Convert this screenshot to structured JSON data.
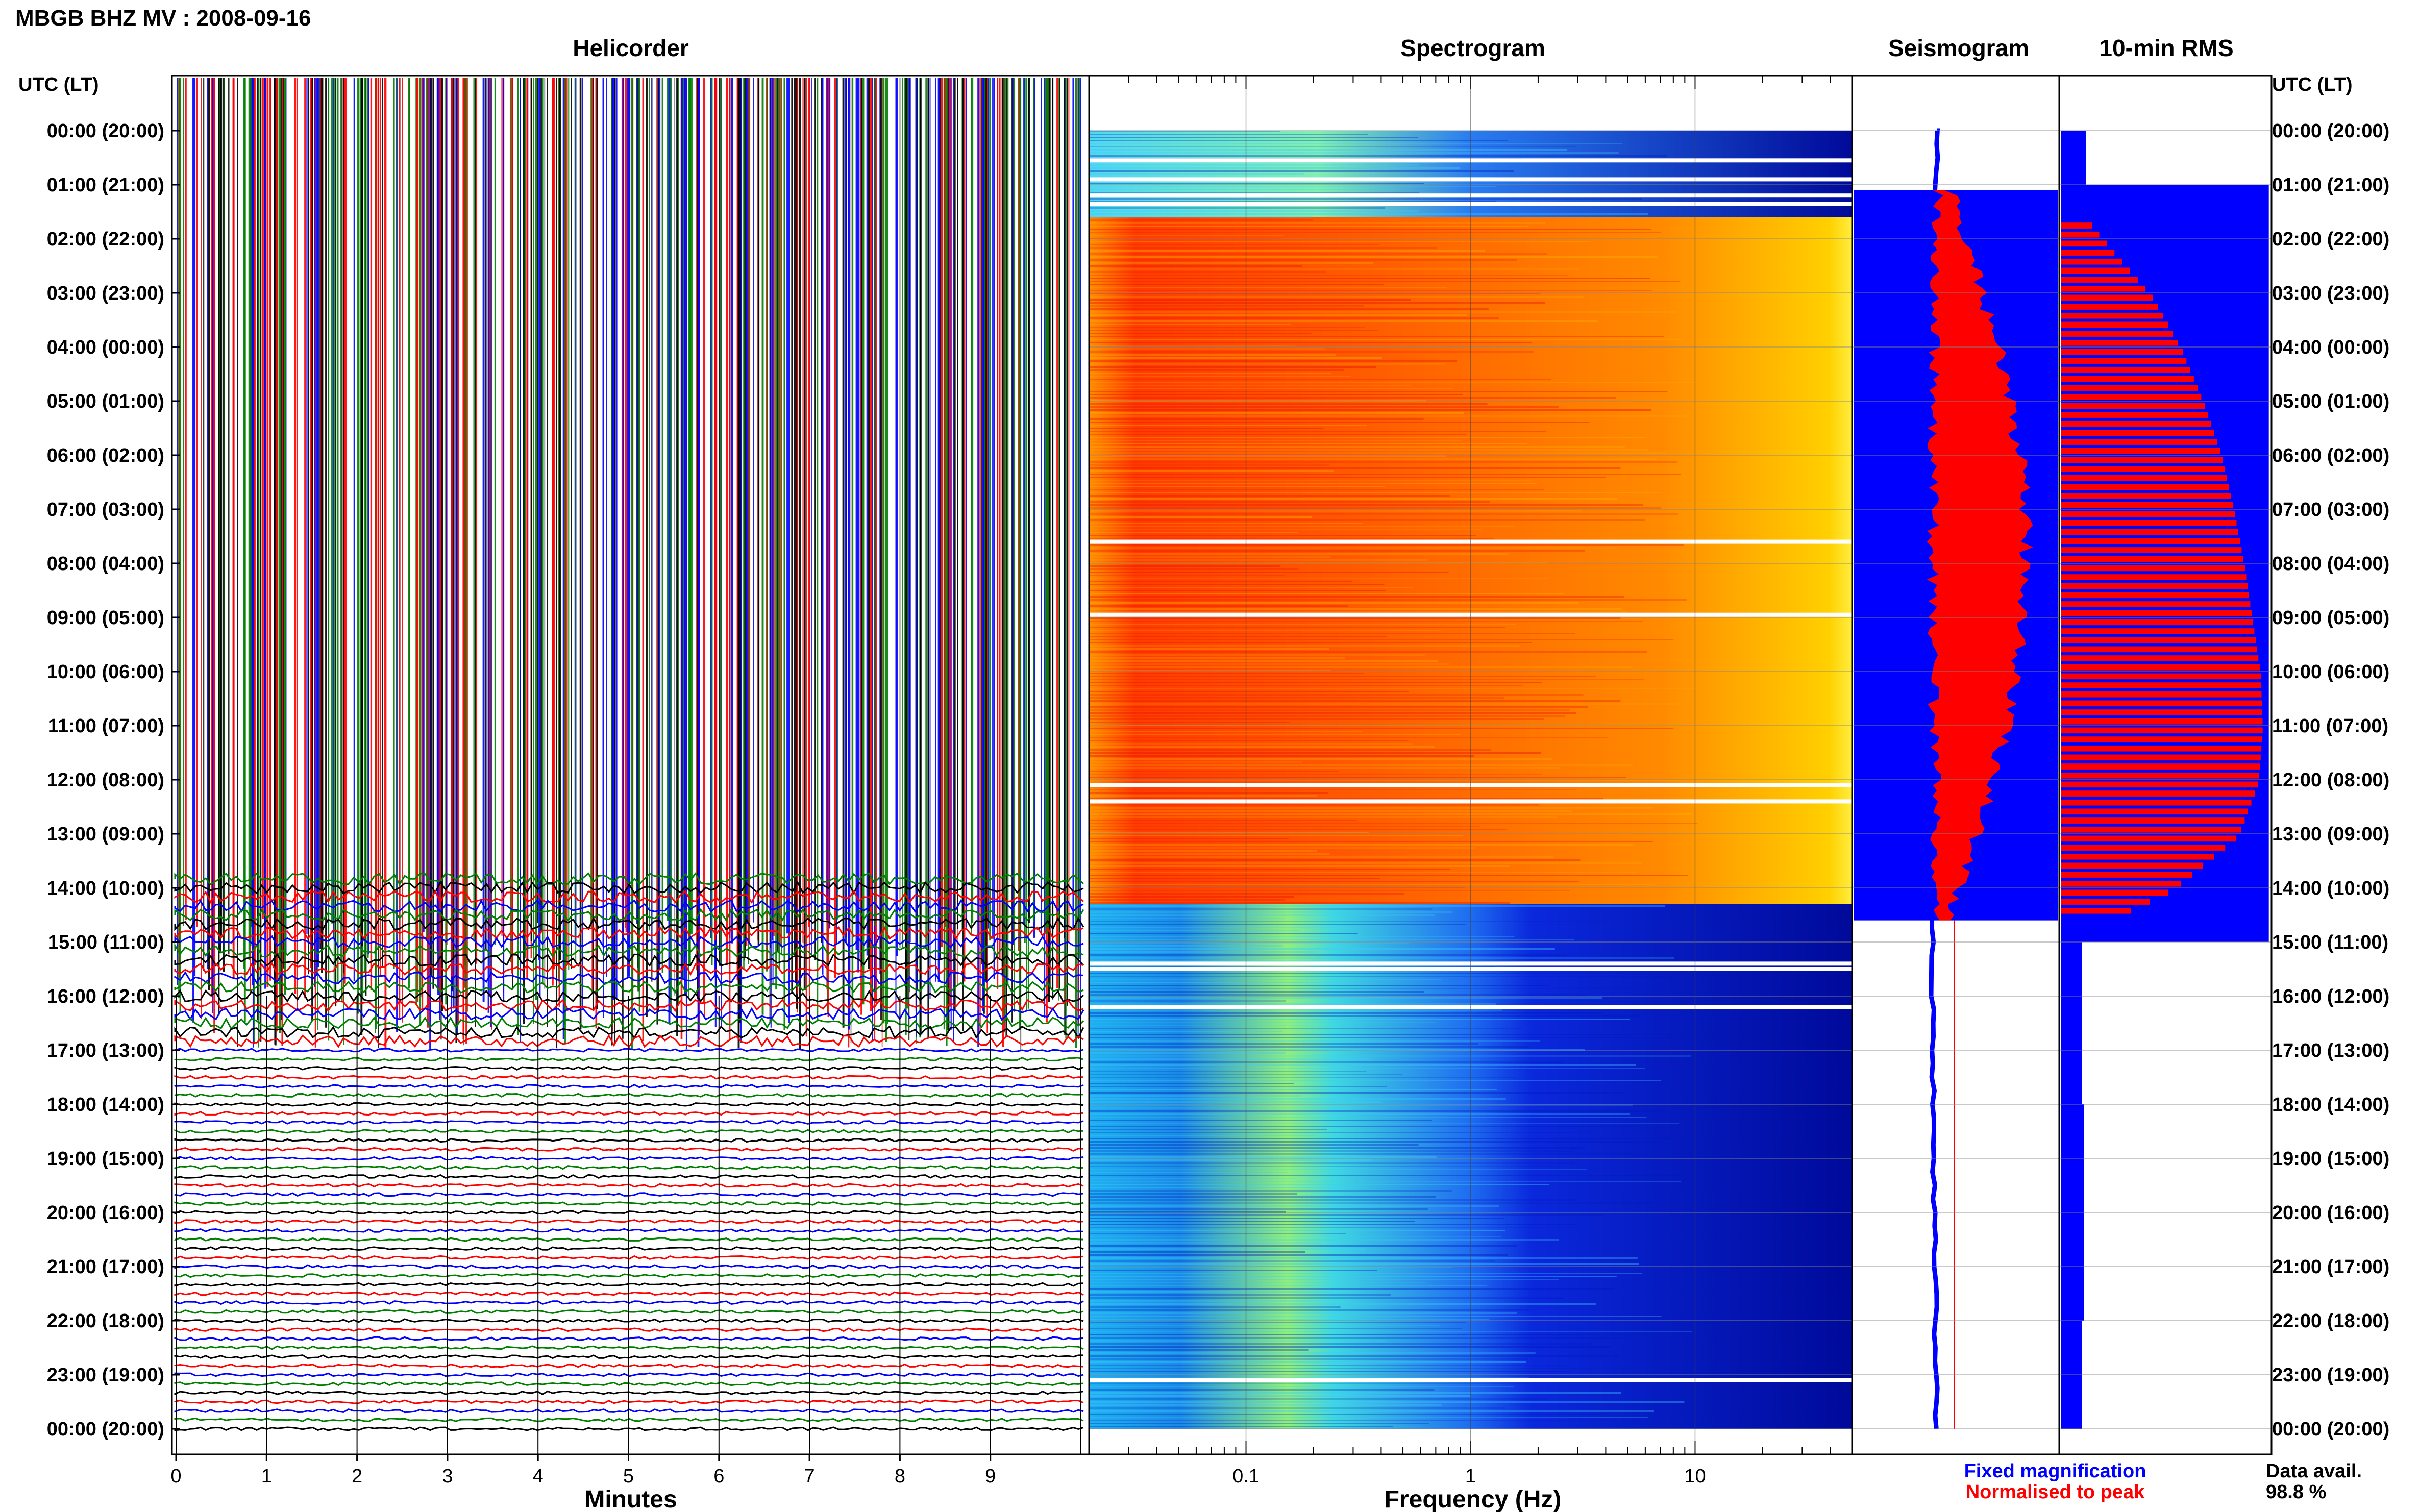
{
  "header": {
    "title": "MBGB BHZ MV : 2008-09-16"
  },
  "panels": {
    "helicorder": {
      "title": "Helicorder",
      "xlabel": "Minutes"
    },
    "spectrogram": {
      "title": "Spectrogram",
      "xlabel": "Frequency (Hz)"
    },
    "seismogram": {
      "title": "Seismogram"
    },
    "rms": {
      "title": "10-min RMS"
    }
  },
  "time_axis": {
    "label_left": "UTC (LT)",
    "label_right": "UTC (LT)",
    "ticks": [
      "00:00 (20:00)",
      "01:00 (21:00)",
      "02:00 (22:00)",
      "03:00 (23:00)",
      "04:00 (00:00)",
      "05:00 (01:00)",
      "06:00 (02:00)",
      "07:00 (03:00)",
      "08:00 (04:00)",
      "09:00 (05:00)",
      "10:00 (06:00)",
      "11:00 (07:00)",
      "12:00 (08:00)",
      "13:00 (09:00)",
      "14:00 (10:00)",
      "15:00 (11:00)",
      "16:00 (12:00)",
      "17:00 (13:00)",
      "18:00 (14:00)",
      "19:00 (15:00)",
      "20:00 (16:00)",
      "21:00 (17:00)",
      "22:00 (18:00)",
      "23:00 (19:00)",
      "00:00 (20:00)"
    ]
  },
  "legend": {
    "fixed": "Fixed magnification",
    "normalised": "Normalised to peak",
    "fixed_color": "#0000ff",
    "normalised_color": "#ff0000"
  },
  "data_avail": {
    "label": "Data avail.",
    "value": "98.8 %"
  },
  "chart_data": [
    {
      "type": "line",
      "name": "helicorder",
      "xlabel": "Minutes",
      "x_ticks": [
        "0",
        "1",
        "2",
        "3",
        "4",
        "5",
        "6",
        "7",
        "8",
        "9"
      ],
      "xlim": [
        0,
        10
      ],
      "trace_colors": [
        "#000000",
        "#ff0000",
        "#0000ff",
        "#008000"
      ],
      "traces_per_hour": 6,
      "saturated_until_hour": 17
    },
    {
      "type": "heatmap",
      "name": "spectrogram",
      "xlabel": "Frequency (Hz)",
      "x_scale": "log",
      "x_ticks": [
        "0.1",
        "1",
        "10"
      ],
      "x_tick_values": [
        0.1,
        1,
        10
      ],
      "xlim": [
        0.02,
        50
      ],
      "colormap": "jet",
      "high_energy_hours": [
        1.6,
        14.3
      ]
    },
    {
      "type": "area",
      "name": "seismogram",
      "series": [
        {
          "name": "Fixed magnification",
          "color": "#0000ff"
        },
        {
          "name": "Normalised to peak",
          "color": "#ff0000"
        }
      ]
    },
    {
      "type": "bar",
      "name": "10-min RMS",
      "orientation": "horizontal",
      "series": [
        {
          "name": "Fixed magnification",
          "color": "#0000ff",
          "hourly_values": [
            0.12,
            0.98,
            0.98,
            0.98,
            0.98,
            0.98,
            0.98,
            0.98,
            0.98,
            0.98,
            0.98,
            0.98,
            0.98,
            0.98,
            0.98,
            0.1,
            0.1,
            0.1,
            0.11,
            0.11,
            0.11,
            0.11,
            0.1,
            0.1,
            0.1
          ]
        },
        {
          "name": "Normalised to peak",
          "color": "#ff0000",
          "hourly_values": [
            0.0,
            0.0,
            0.22,
            0.45,
            0.6,
            0.71,
            0.8,
            0.86,
            0.91,
            0.95,
            0.99,
            1.0,
            0.98,
            0.88,
            0.55,
            0.0,
            0.0,
            0.0,
            0.0,
            0.0,
            0.0,
            0.0,
            0.0,
            0.0,
            0.0
          ]
        }
      ]
    }
  ]
}
